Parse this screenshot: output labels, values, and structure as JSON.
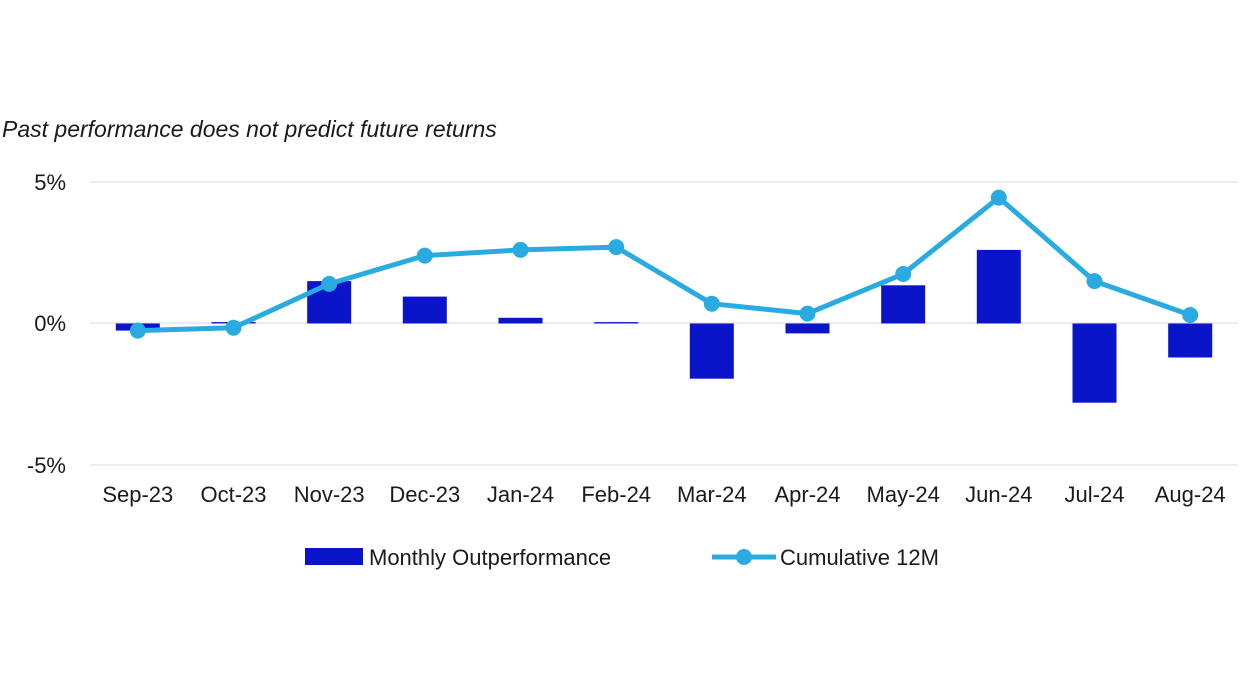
{
  "chart_data": {
    "type": "bar",
    "subtitle": "Past performance does not predict future returns",
    "categories": [
      "Sep-23",
      "Oct-23",
      "Nov-23",
      "Dec-23",
      "Jan-24",
      "Feb-24",
      "Mar-24",
      "Apr-24",
      "May-24",
      "Jun-24",
      "Jul-24",
      "Aug-24"
    ],
    "y_ticks": [
      "5%",
      "0%",
      "-5%"
    ],
    "ylim": [
      -5,
      5
    ],
    "grid": true,
    "legend_position": "bottom",
    "series": [
      {
        "name": "Monthly Outperformance",
        "type": "bar",
        "color": "#0a14c8",
        "values": [
          -0.25,
          0.05,
          1.5,
          0.95,
          0.2,
          0.05,
          -1.95,
          -0.35,
          1.35,
          2.6,
          -2.8,
          -1.2
        ]
      },
      {
        "name": "Cumulative 12M",
        "type": "line",
        "color": "#29abe2",
        "values": [
          -0.25,
          -0.15,
          1.4,
          2.4,
          2.6,
          2.7,
          0.7,
          0.35,
          1.75,
          4.45,
          1.5,
          0.3
        ]
      }
    ]
  }
}
